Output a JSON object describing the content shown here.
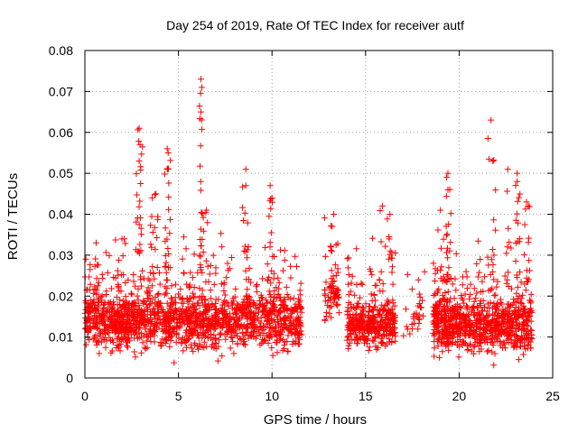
{
  "chart_data": {
    "type": "scatter",
    "title": "Day 254 of 2019, Rate Of TEC Index for receiver autf",
    "xlabel": "GPS time / hours",
    "ylabel": "ROTI / TECUs",
    "xlim": [
      0,
      25
    ],
    "ylim": [
      0,
      0.08
    ],
    "xticks": [
      0,
      5,
      10,
      15,
      20,
      25
    ],
    "xtick_labels": [
      "0",
      "5",
      "10",
      "15",
      "20",
      "25"
    ],
    "yticks": [
      0,
      0.01,
      0.02,
      0.03,
      0.04,
      0.05,
      0.06,
      0.07,
      0.08
    ],
    "ytick_labels": [
      "0",
      "0.01",
      "0.02",
      "0.03",
      "0.04",
      "0.05",
      "0.06",
      "0.07",
      "0.08"
    ],
    "grid": true,
    "marker": "+",
    "color": "#ff0000",
    "segments": [
      {
        "x_start": 0.0,
        "x_end": 11.6,
        "base": 0.014,
        "spread": 0.007,
        "count": 1500
      },
      {
        "x_start": 12.8,
        "x_end": 13.6,
        "base": 0.02,
        "spread": 0.007,
        "count": 60
      },
      {
        "x_start": 14.0,
        "x_end": 16.6,
        "base": 0.013,
        "spread": 0.006,
        "count": 360
      },
      {
        "x_start": 17.0,
        "x_end": 18.2,
        "base": 0.015,
        "spread": 0.006,
        "count": 30
      },
      {
        "x_start": 18.6,
        "x_end": 23.9,
        "base": 0.013,
        "spread": 0.007,
        "count": 800
      }
    ],
    "peaks": [
      {
        "x": 0.6,
        "y": 0.033
      },
      {
        "x": 2.1,
        "y": 0.034
      },
      {
        "x": 2.9,
        "y": 0.061
      },
      {
        "x": 2.95,
        "y": 0.057
      },
      {
        "x": 2.9,
        "y": 0.053
      },
      {
        "x": 3.6,
        "y": 0.044
      },
      {
        "x": 3.8,
        "y": 0.045
      },
      {
        "x": 4.4,
        "y": 0.056
      },
      {
        "x": 4.45,
        "y": 0.055
      },
      {
        "x": 4.4,
        "y": 0.051
      },
      {
        "x": 6.2,
        "y": 0.073
      },
      {
        "x": 6.25,
        "y": 0.071
      },
      {
        "x": 6.2,
        "y": 0.065
      },
      {
        "x": 6.5,
        "y": 0.041
      },
      {
        "x": 8.6,
        "y": 0.051
      },
      {
        "x": 8.6,
        "y": 0.047
      },
      {
        "x": 9.9,
        "y": 0.047
      },
      {
        "x": 10.0,
        "y": 0.044
      },
      {
        "x": 13.3,
        "y": 0.04
      },
      {
        "x": 15.9,
        "y": 0.042
      },
      {
        "x": 16.3,
        "y": 0.04
      },
      {
        "x": 19.0,
        "y": 0.041
      },
      {
        "x": 19.4,
        "y": 0.05
      },
      {
        "x": 19.4,
        "y": 0.046
      },
      {
        "x": 21.7,
        "y": 0.063
      },
      {
        "x": 21.8,
        "y": 0.053
      },
      {
        "x": 22.6,
        "y": 0.051
      },
      {
        "x": 23.1,
        "y": 0.05
      },
      {
        "x": 23.1,
        "y": 0.048
      },
      {
        "x": 23.6,
        "y": 0.043
      }
    ]
  }
}
